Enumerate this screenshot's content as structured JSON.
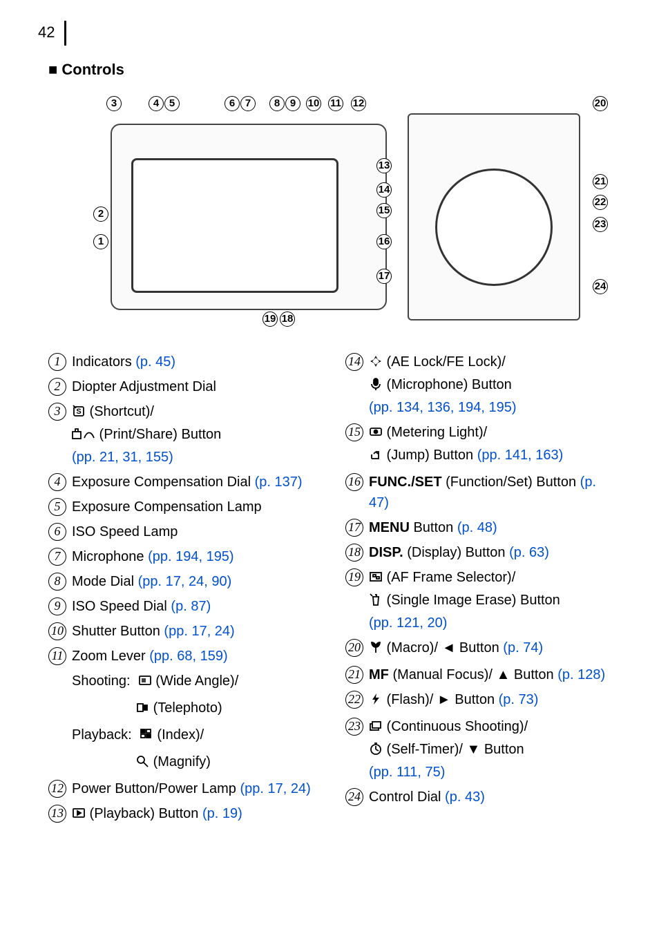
{
  "page_number": "42",
  "section_title": "Controls",
  "link_color": "#0050d0",
  "text_color": "#000000",
  "callouts": [
    "1",
    "2",
    "3",
    "4",
    "5",
    "6",
    "7",
    "8",
    "9",
    "10",
    "11",
    "12",
    "13",
    "14",
    "15",
    "16",
    "17",
    "18",
    "19",
    "20",
    "21",
    "22",
    "23",
    "24"
  ],
  "left_items": [
    {
      "n": "1",
      "text": "Indicators ",
      "refs": "(p. 45)"
    },
    {
      "n": "2",
      "text": "Diopter Adjustment Dial"
    },
    {
      "n": "3",
      "icon": "shortcut",
      "text": " (Shortcut)/",
      "line2_icon": "printshare",
      "line2_text": " (Print/Share) Button",
      "refs": "(pp. 21, 31, 155)"
    },
    {
      "n": "4",
      "text": "Exposure Compensation Dial ",
      "refs": "(p. 137)"
    },
    {
      "n": "5",
      "text": "Exposure Compensation Lamp"
    },
    {
      "n": "6",
      "text": "ISO Speed Lamp"
    },
    {
      "n": "7",
      "text": "Microphone ",
      "refs": "(pp. 194, 195)"
    },
    {
      "n": "8",
      "text": "Mode Dial ",
      "refs": "(pp. 17, 24, 90)"
    },
    {
      "n": "9",
      "text": "ISO Speed Dial ",
      "refs": "(p. 87)"
    },
    {
      "n": "10",
      "text": "Shutter Button ",
      "refs": "(pp. 17, 24)"
    },
    {
      "n": "11",
      "text": "Zoom Lever ",
      "refs": "(pp. 68, 159)"
    },
    {
      "n": "12",
      "text": "Power Button/Power Lamp ",
      "refs": "(pp. 17, 24)"
    },
    {
      "n": "13",
      "icon": "playback",
      "text": " (Playback) Button ",
      "refs": "(p. 19)"
    }
  ],
  "zoom_sub": {
    "shooting_label": "Shooting:",
    "wide": " (Wide Angle)/",
    "tele": " (Telephoto)",
    "playback_label": "Playback:",
    "index": " (Index)/",
    "magnify": " (Magnify)"
  },
  "right_items": [
    {
      "n": "14",
      "icon": "aelock",
      "text": " (AE Lock/FE Lock)/",
      "line2_icon": "mic",
      "line2_text": " (Microphone) Button",
      "refs": "(pp. 134, 136, 194, 195)"
    },
    {
      "n": "15",
      "icon": "metering",
      "text": " (Metering Light)/",
      "line2_icon": "jump",
      "line2_text": " (Jump) Button ",
      "refs_inline": "(pp. 141, 163)"
    },
    {
      "n": "16",
      "bold": "FUNC./SET",
      "text": " (Function/Set) Button ",
      "refs": "(p. 47)"
    },
    {
      "n": "17",
      "bold": "MENU",
      "text": " Button ",
      "refs": "(p. 48)"
    },
    {
      "n": "18",
      "bold": "DISP.",
      "text": " (Display) Button ",
      "refs": "(p. 63)"
    },
    {
      "n": "19",
      "icon": "afframe",
      "text": " (AF Frame Selector)/",
      "line2_icon": "erase",
      "line2_text": " (Single Image Erase) Button ",
      "refs": "(pp. 121, 20)"
    },
    {
      "n": "20",
      "icon": "macro",
      "text": " (Macro)/ ",
      "arrow": "left",
      "text2": " Button ",
      "refs": "(p. 74)"
    },
    {
      "n": "21",
      "bold": "MF",
      "text": " (Manual Focus)/ ",
      "arrow": "up",
      "text2": " Button ",
      "refs": "(p. 128)"
    },
    {
      "n": "22",
      "icon": "flash",
      "text": " (Flash)/ ",
      "arrow": "right",
      "text2": " Button ",
      "refs": "(p. 73)"
    },
    {
      "n": "23",
      "icon": "continuous",
      "text": " (Continuous Shooting)/",
      "line2_icon": "timer",
      "line2_text": " (Self-Timer)/ ",
      "arrow": "down",
      "text2": " Button ",
      "refs": "(pp. 111, 75)"
    },
    {
      "n": "24",
      "text": "Control Dial ",
      "refs": "(p. 43)"
    }
  ],
  "icons_unicode": {
    "left": "◄",
    "right": "►",
    "up": "▲",
    "down": "▼",
    "mic": "🎤",
    "magnify": "🔍"
  }
}
